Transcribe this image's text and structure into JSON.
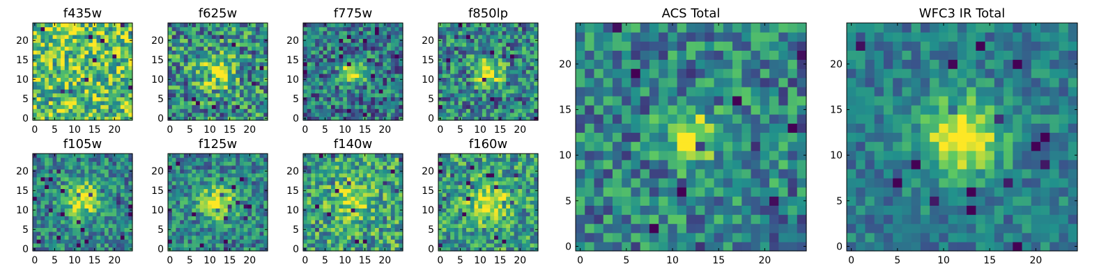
{
  "figure": {
    "colormap": "viridis",
    "colormap_stops": [
      "#440154",
      "#3b528b",
      "#21918c",
      "#5ec962",
      "#fde725"
    ],
    "background": "#ffffff"
  },
  "chart_data": [
    {
      "type": "heatmap",
      "title": "f435w",
      "grid": [
        25,
        25
      ],
      "xlim": [
        0,
        24
      ],
      "ylim": [
        0,
        24
      ],
      "xticks": [
        "0",
        "5",
        "10",
        "15",
        "20"
      ],
      "yticks": [
        "0",
        "5",
        "10",
        "15",
        "20"
      ],
      "source_peak": [
        12,
        12
      ],
      "source_strength": 0.05,
      "source_width": 3.0,
      "noise": 0.35,
      "base": 0.72,
      "seed": 11
    },
    {
      "type": "heatmap",
      "title": "f625w",
      "grid": [
        25,
        25
      ],
      "xlim": [
        0,
        24
      ],
      "ylim": [
        0,
        24
      ],
      "xticks": [
        "0",
        "5",
        "10",
        "15",
        "20"
      ],
      "yticks": [
        "0",
        "5",
        "10",
        "15",
        "20"
      ],
      "source_peak": [
        12,
        12
      ],
      "source_strength": 0.45,
      "source_width": 3.0,
      "noise": 0.35,
      "base": 0.5,
      "seed": 23
    },
    {
      "type": "heatmap",
      "title": "f775w",
      "grid": [
        25,
        25
      ],
      "xlim": [
        0,
        24
      ],
      "ylim": [
        0,
        24
      ],
      "xticks": [
        "0",
        "5",
        "10",
        "15",
        "20"
      ],
      "yticks": [
        "0",
        "5",
        "10",
        "15",
        "20"
      ],
      "source_peak": [
        12,
        12
      ],
      "source_strength": 0.55,
      "source_width": 2.2,
      "noise": 0.3,
      "base": 0.4,
      "seed": 37
    },
    {
      "type": "heatmap",
      "title": "f850lp",
      "grid": [
        25,
        25
      ],
      "xlim": [
        0,
        24
      ],
      "ylim": [
        0,
        24
      ],
      "xticks": [
        "0",
        "5",
        "10",
        "15",
        "20"
      ],
      "yticks": [
        "0",
        "5",
        "10",
        "15",
        "20"
      ],
      "source_peak": [
        12,
        12
      ],
      "source_strength": 0.55,
      "source_width": 2.4,
      "noise": 0.32,
      "base": 0.45,
      "seed": 41
    },
    {
      "type": "heatmap",
      "title": "f105w",
      "grid": [
        25,
        25
      ],
      "xlim": [
        0,
        24
      ],
      "ylim": [
        0,
        24
      ],
      "xticks": [
        "0",
        "5",
        "10",
        "15",
        "20"
      ],
      "yticks": [
        "0",
        "5",
        "10",
        "15",
        "20"
      ],
      "source_peak": [
        12,
        13
      ],
      "source_strength": 0.55,
      "source_width": 3.2,
      "noise": 0.25,
      "base": 0.45,
      "seed": 53
    },
    {
      "type": "heatmap",
      "title": "f125w",
      "grid": [
        25,
        25
      ],
      "xlim": [
        0,
        24
      ],
      "ylim": [
        0,
        24
      ],
      "xticks": [
        "0",
        "5",
        "10",
        "15",
        "20"
      ],
      "yticks": [
        "0",
        "5",
        "10",
        "15",
        "20"
      ],
      "source_peak": [
        12,
        12
      ],
      "source_strength": 0.55,
      "source_width": 3.2,
      "noise": 0.25,
      "base": 0.45,
      "seed": 67
    },
    {
      "type": "heatmap",
      "title": "f140w",
      "grid": [
        25,
        25
      ],
      "xlim": [
        0,
        24
      ],
      "ylim": [
        0,
        24
      ],
      "xticks": [
        "0",
        "5",
        "10",
        "15",
        "20"
      ],
      "yticks": [
        "0",
        "5",
        "10",
        "15",
        "20"
      ],
      "source_peak": [
        12,
        13
      ],
      "source_strength": 0.35,
      "source_width": 3.0,
      "noise": 0.3,
      "base": 0.58,
      "seed": 79
    },
    {
      "type": "heatmap",
      "title": "f160w",
      "grid": [
        25,
        25
      ],
      "xlim": [
        0,
        24
      ],
      "ylim": [
        0,
        24
      ],
      "xticks": [
        "0",
        "5",
        "10",
        "15",
        "20"
      ],
      "yticks": [
        "0",
        "5",
        "10",
        "15",
        "20"
      ],
      "source_peak": [
        12,
        12
      ],
      "source_strength": 0.45,
      "source_width": 3.2,
      "noise": 0.3,
      "base": 0.55,
      "seed": 83
    },
    {
      "type": "heatmap",
      "title": "ACS Total",
      "grid": [
        25,
        25
      ],
      "xlim": [
        0,
        24
      ],
      "ylim": [
        0,
        24
      ],
      "xticks": [
        "0",
        "5",
        "10",
        "15",
        "20"
      ],
      "yticks": [
        "0",
        "5",
        "10",
        "15",
        "20"
      ],
      "source_peak": [
        12,
        12
      ],
      "source_strength": 0.6,
      "source_width": 2.0,
      "noise": 0.28,
      "base": 0.45,
      "seed": 97
    },
    {
      "type": "heatmap",
      "title": "WFC3 IR Total",
      "grid": [
        25,
        25
      ],
      "xlim": [
        0,
        24
      ],
      "ylim": [
        0,
        24
      ],
      "xticks": [
        "0",
        "5",
        "10",
        "15",
        "20"
      ],
      "yticks": [
        "0",
        "5",
        "10",
        "15",
        "20"
      ],
      "source_peak": [
        12,
        12
      ],
      "source_strength": 0.62,
      "source_width": 3.0,
      "noise": 0.18,
      "base": 0.42,
      "seed": 101
    }
  ]
}
